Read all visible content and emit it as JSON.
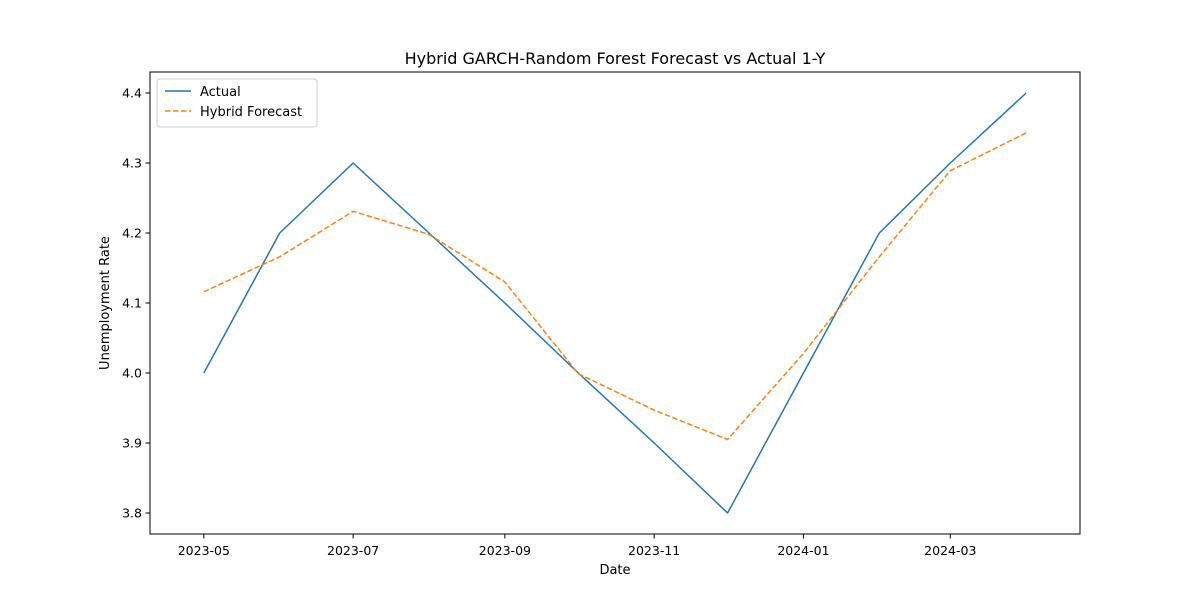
{
  "chart_data": {
    "type": "line",
    "title": "Hybrid GARCH-Random Forest Forecast vs Actual 1-Y",
    "xlabel": "Date",
    "ylabel": "Unemployment Rate",
    "x": [
      "2023-05-01",
      "2023-06-01",
      "2023-07-01",
      "2023-08-01",
      "2023-09-01",
      "2023-10-01",
      "2023-11-01",
      "2023-12-01",
      "2024-01-01",
      "2024-02-01",
      "2024-03-01",
      "2024-04-01"
    ],
    "xlim": [
      "2023-04-09",
      "2024-04-23"
    ],
    "xticks": [
      {
        "date": "2023-05-01",
        "label": "2023-05"
      },
      {
        "date": "2023-07-01",
        "label": "2023-07"
      },
      {
        "date": "2023-09-01",
        "label": "2023-09"
      },
      {
        "date": "2023-11-01",
        "label": "2023-11"
      },
      {
        "date": "2024-01-01",
        "label": "2024-01"
      },
      {
        "date": "2024-03-01",
        "label": "2024-03"
      }
    ],
    "ylim": [
      3.77,
      4.43
    ],
    "yticks": [
      {
        "value": 3.8,
        "label": "3.8"
      },
      {
        "value": 3.9,
        "label": "3.9"
      },
      {
        "value": 4.0,
        "label": "4.0"
      },
      {
        "value": 4.1,
        "label": "4.1"
      },
      {
        "value": 4.2,
        "label": "4.2"
      },
      {
        "value": 4.3,
        "label": "4.3"
      },
      {
        "value": 4.4,
        "label": "4.4"
      }
    ],
    "grid": false,
    "legend_position": "top-left",
    "series": [
      {
        "name": "Actual",
        "color": "#1f77b4",
        "style": "solid",
        "values": [
          4.0,
          4.2,
          4.3,
          4.2,
          4.1,
          4.0,
          3.9,
          3.8,
          4.0,
          4.2,
          4.3,
          4.4
        ]
      },
      {
        "name": "Hybrid Forecast",
        "color": "#ff7f0e",
        "style": "dashed",
        "values": [
          4.116,
          4.166,
          4.231,
          4.198,
          4.13,
          3.999,
          3.947,
          3.905,
          4.028,
          4.166,
          4.289,
          4.343
        ]
      }
    ]
  }
}
